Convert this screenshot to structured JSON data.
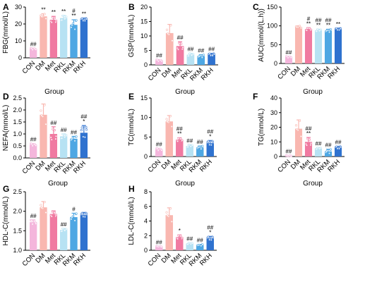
{
  "figure": {
    "group_colors": {
      "CON": "#f4b6dc",
      "DM": "#f9b7b0",
      "Met": "#f07aa1",
      "RKL": "#b7e2f3",
      "RKM": "#4ea7e3",
      "RKH": "#2f72cf"
    }
  },
  "chart_data": [
    {
      "panel": "A",
      "type": "bar",
      "xlabel": "Group",
      "ylabel": "FBG(mmol/L)",
      "ylim": [
        0,
        30
      ],
      "yticks": [
        0,
        10,
        20,
        30
      ],
      "categories": [
        "CON",
        "DM",
        "Met",
        "RKL",
        "RKM",
        "RKH"
      ],
      "values": [
        5.2,
        24.5,
        22.5,
        23.5,
        19.5,
        22.5
      ],
      "errors": [
        0.5,
        1.5,
        2.0,
        1.5,
        3.0,
        1.0
      ],
      "annotations": [
        "##",
        "**",
        "**",
        "**",
        "#\n**",
        "**"
      ]
    },
    {
      "panel": "B",
      "type": "bar",
      "xlabel": "Group",
      "ylabel": "GSP(mmol/L)",
      "ylim": [
        0,
        20
      ],
      "yticks": [
        0,
        5,
        10,
        15,
        20
      ],
      "categories": [
        "CON",
        "DM",
        "Met",
        "RKL",
        "RKM",
        "RKH"
      ],
      "values": [
        1.5,
        11.0,
        6.5,
        3.5,
        3.0,
        3.5
      ],
      "errors": [
        0.3,
        3.0,
        1.5,
        0.5,
        0.5,
        0.5
      ],
      "annotations": [
        "##",
        "",
        "##",
        "##",
        "##",
        "##"
      ]
    },
    {
      "panel": "C",
      "type": "bar",
      "xlabel": "Group",
      "ylabel": "AUC(mmol/(L.h))",
      "ylim": [
        0,
        150
      ],
      "yticks": [
        0,
        50,
        100,
        150
      ],
      "categories": [
        "CON",
        "DM",
        "Met",
        "RKL",
        "RKM",
        "RKH"
      ],
      "values": [
        17,
        97,
        91,
        88,
        87,
        91
      ],
      "errors": [
        2,
        3,
        4,
        3,
        4,
        3
      ],
      "annotations": [
        "##",
        "",
        "#\n**",
        "##\n**",
        "##\n**",
        "**"
      ]
    },
    {
      "panel": "D",
      "type": "bar",
      "xlabel": "Group",
      "ylabel": "NEFA(mmol/L)",
      "ylim": [
        0,
        2.5
      ],
      "yticks": [
        0.0,
        0.5,
        1.0,
        1.5,
        2.0,
        2.5
      ],
      "categories": [
        "CON",
        "DM",
        "Met",
        "RKL",
        "RKM",
        "RKH"
      ],
      "values": [
        0.55,
        1.8,
        1.0,
        0.9,
        0.8,
        1.05
      ],
      "errors": [
        0.05,
        0.45,
        0.3,
        0.1,
        0.1,
        0.3
      ],
      "annotations": [
        "##",
        "",
        "##",
        "##",
        "##",
        "##\n*"
      ]
    },
    {
      "panel": "E",
      "type": "bar",
      "xlabel": "Group",
      "ylabel": "TC(mmol/L)",
      "ylim": [
        0,
        15
      ],
      "yticks": [
        0,
        5,
        10,
        15
      ],
      "categories": [
        "CON",
        "DM",
        "Met",
        "RKL",
        "RKM",
        "RKH"
      ],
      "values": [
        1.8,
        9.0,
        4.3,
        2.7,
        2.3,
        3.4
      ],
      "errors": [
        0.3,
        1.5,
        0.5,
        0.3,
        0.4,
        0.7
      ],
      "annotations": [
        "##",
        "",
        "##\n**",
        "##",
        "##",
        "##\n*"
      ]
    },
    {
      "panel": "F",
      "type": "bar",
      "xlabel": "Group",
      "ylabel": "TG(mmol/L)",
      "ylim": [
        0,
        40
      ],
      "yticks": [
        0,
        10,
        20,
        30,
        40
      ],
      "categories": [
        "CON",
        "DM",
        "Met",
        "RKL",
        "RKM",
        "RKH"
      ],
      "values": [
        0.5,
        19,
        10,
        5.5,
        3.5,
        6
      ],
      "errors": [
        0.2,
        6,
        3,
        0.5,
        1.5,
        1
      ],
      "annotations": [
        "##",
        "",
        "##\n**",
        "##",
        "##",
        "##"
      ]
    },
    {
      "panel": "G",
      "type": "bar",
      "xlabel": "",
      "ylabel": "HDL-C(mmol/L)",
      "ylim": [
        1.0,
        2.5
      ],
      "yticks": [
        1.0,
        1.5,
        2.0,
        2.5
      ],
      "categories": [
        "CON",
        "DM",
        "Met",
        "RKL",
        "RKM",
        "RKH"
      ],
      "values": [
        1.72,
        2.1,
        1.93,
        1.52,
        1.85,
        1.9
      ],
      "errors": [
        0.06,
        0.15,
        0.08,
        0.04,
        0.1,
        0.07
      ],
      "annotations": [
        "##",
        "",
        "",
        "##",
        "#",
        ""
      ]
    },
    {
      "panel": "H",
      "type": "bar",
      "xlabel": "",
      "ylabel": "LDL-C(mmol/L)",
      "ylim": [
        0,
        8
      ],
      "yticks": [
        0,
        2,
        4,
        6,
        8
      ],
      "categories": [
        "CON",
        "DM",
        "Met",
        "RKL",
        "RKM",
        "RKH"
      ],
      "values": [
        0.5,
        4.8,
        1.8,
        0.9,
        0.7,
        1.6
      ],
      "errors": [
        0.05,
        1.0,
        0.3,
        0.1,
        0.1,
        0.3
      ],
      "annotations": [
        "##",
        "",
        "*",
        "##",
        "##",
        "##\n*"
      ]
    }
  ]
}
